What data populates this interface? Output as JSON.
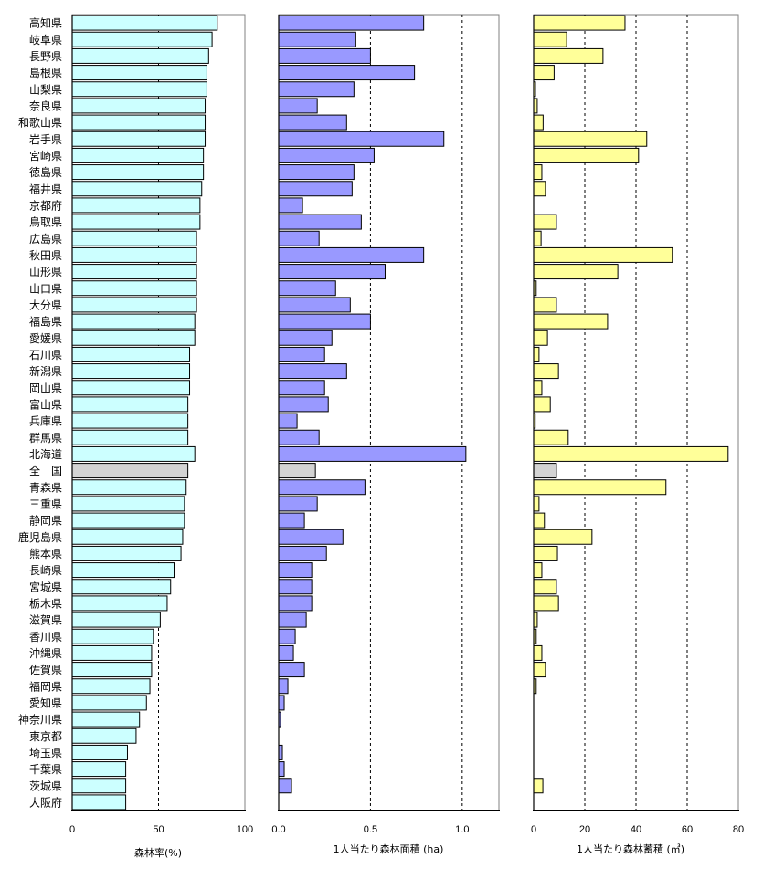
{
  "chart_data": [
    {
      "type": "bar",
      "orientation": "horizontal",
      "xlabel": "森林率(%)",
      "xlim": [
        0,
        100
      ],
      "xticks": [
        "0",
        "50",
        "100"
      ],
      "grid": "vertical dashed at 50",
      "fill": "#ccffff",
      "highlight_fill": "#d3d3d3",
      "categories": [
        "高知県",
        "岐阜県",
        "長野県",
        "島根県",
        "山梨県",
        "奈良県",
        "和歌山県",
        "岩手県",
        "宮崎県",
        "徳島県",
        "福井県",
        "京都府",
        "鳥取県",
        "広島県",
        "秋田県",
        "山形県",
        "山口県",
        "大分県",
        "福島県",
        "愛媛県",
        "石川県",
        "新潟県",
        "岡山県",
        "富山県",
        "兵庫県",
        "群馬県",
        "北海道",
        "全　国",
        "青森県",
        "三重県",
        "静岡県",
        "鹿児島県",
        "熊本県",
        "長崎県",
        "宮城県",
        "栃木県",
        "滋賀県",
        "香川県",
        "沖縄県",
        "佐賀県",
        "福岡県",
        "愛知県",
        "神奈川県",
        "東京都",
        "埼玉県",
        "千葉県",
        "茨城県",
        "大阪府"
      ],
      "values": [
        84,
        81,
        79,
        78,
        78,
        77,
        77,
        77,
        76,
        76,
        75,
        74,
        74,
        72,
        72,
        72,
        72,
        72,
        71,
        71,
        68,
        68,
        68,
        67,
        67,
        67,
        71,
        67,
        66,
        65,
        65,
        64,
        63,
        59,
        57,
        55,
        51,
        47,
        46,
        46,
        45,
        43,
        39,
        37,
        32,
        31,
        31,
        31
      ]
    },
    {
      "type": "bar",
      "orientation": "horizontal",
      "xlabel": "1人当たり森林面積 (ha)",
      "xlim": [
        0,
        1.2
      ],
      "xticks": [
        "0.0",
        "0.5",
        "1.0"
      ],
      "grid": "vertical dashed at 0.5, 1.0",
      "fill": "#9999ff",
      "highlight_fill": "#d3d3d3",
      "values": [
        0.79,
        0.42,
        0.5,
        0.74,
        0.41,
        0.21,
        0.37,
        0.9,
        0.52,
        0.41,
        0.4,
        0.13,
        0.45,
        0.22,
        0.79,
        0.58,
        0.31,
        0.39,
        0.5,
        0.29,
        0.25,
        0.37,
        0.25,
        0.27,
        0.1,
        0.22,
        1.02,
        0.2,
        0.47,
        0.21,
        0.14,
        0.35,
        0.26,
        0.18,
        0.18,
        0.18,
        0.15,
        0.09,
        0.08,
        0.14,
        0.05,
        0.03,
        0.01,
        0.0,
        0.02,
        0.03,
        0.07,
        0.0
      ]
    },
    {
      "type": "bar",
      "orientation": "horizontal",
      "xlabel": "1人当たり森林蓄積 (㎥)",
      "xlim": [
        0,
        80
      ],
      "xticks": [
        "0",
        "20",
        "40",
        "60",
        "80"
      ],
      "grid": "vertical dashed at 20, 40, 60",
      "fill": "#ffff99",
      "highlight_fill": "#d3d3d3",
      "values": [
        35.7,
        12.9,
        27.1,
        8.0,
        0.7,
        1.4,
        3.7,
        44.2,
        41.0,
        3.2,
        4.6,
        0,
        8.9,
        2.9,
        54.2,
        32.9,
        1.0,
        8.9,
        28.9,
        5.4,
        2.1,
        9.7,
        3.2,
        6.5,
        0.6,
        13.5,
        76.0,
        8.9,
        51.7,
        2.1,
        4.2,
        22.8,
        9.3,
        3.2,
        8.9,
        9.7,
        1.4,
        1.0,
        3.2,
        4.6,
        1.0,
        0,
        0,
        0,
        0,
        0,
        3.6,
        0
      ]
    }
  ],
  "highlight_category": "全　国"
}
